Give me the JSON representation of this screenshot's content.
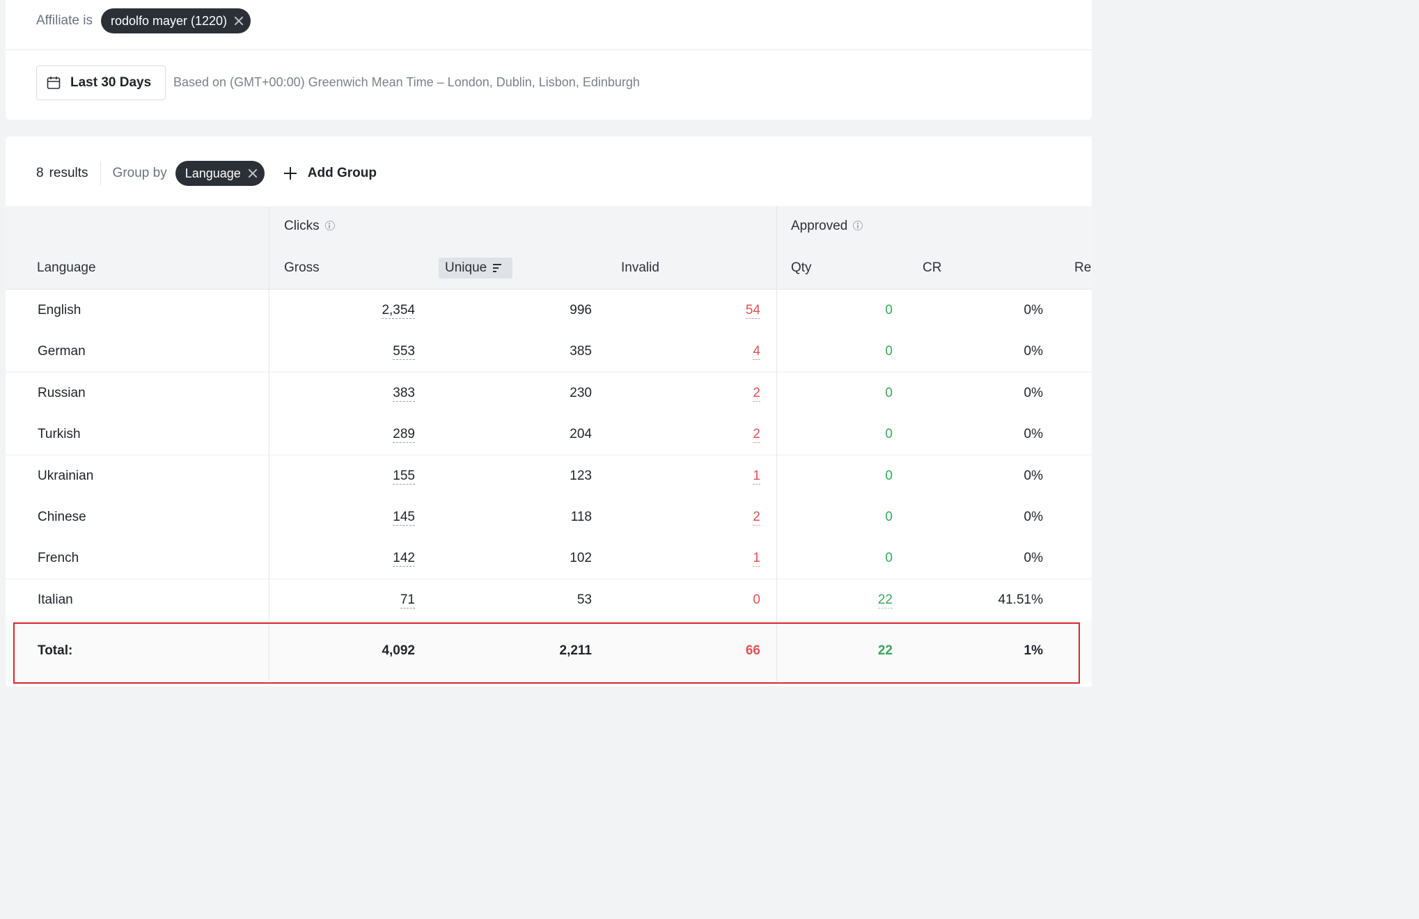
{
  "filter": {
    "label": "Affiliate is",
    "chip": "rodolfo mayer (1220)"
  },
  "date_range": {
    "label": "Last 30 Days",
    "timezone_note": "Based on (GMT+00:00) Greenwich Mean Time – London, Dublin, Lisbon, Edinburgh"
  },
  "toolbar": {
    "results_count": "8",
    "results_label": "results",
    "group_by_label": "Group by",
    "group_chip": "Language",
    "add_group": "Add Group"
  },
  "table": {
    "group_headers": {
      "clicks": "Clicks",
      "approved": "Approved"
    },
    "columns": {
      "language": "Language",
      "gross": "Gross",
      "unique": "Unique",
      "invalid": "Invalid",
      "qty": "Qty",
      "cr": "CR",
      "rev": "Re"
    },
    "rows": [
      {
        "language": "English",
        "gross": "2,354",
        "unique": "996",
        "invalid": "54",
        "qty": "0",
        "cr": "0%"
      },
      {
        "language": "German",
        "gross": "553",
        "unique": "385",
        "invalid": "4",
        "qty": "0",
        "cr": "0%"
      },
      {
        "language": "Russian",
        "gross": "383",
        "unique": "230",
        "invalid": "2",
        "qty": "0",
        "cr": "0%"
      },
      {
        "language": "Turkish",
        "gross": "289",
        "unique": "204",
        "invalid": "2",
        "qty": "0",
        "cr": "0%"
      },
      {
        "language": "Ukrainian",
        "gross": "155",
        "unique": "123",
        "invalid": "1",
        "qty": "0",
        "cr": "0%"
      },
      {
        "language": "Chinese",
        "gross": "145",
        "unique": "118",
        "invalid": "2",
        "qty": "0",
        "cr": "0%"
      },
      {
        "language": "French",
        "gross": "142",
        "unique": "102",
        "invalid": "1",
        "qty": "0",
        "cr": "0%"
      },
      {
        "language": "Italian",
        "gross": "71",
        "unique": "53",
        "invalid": "0",
        "qty": "22",
        "cr": "41.51%"
      }
    ],
    "total": {
      "label": "Total:",
      "gross": "4,092",
      "unique": "2,211",
      "invalid": "66",
      "qty": "22",
      "cr": "1%"
    }
  },
  "colors": {
    "negative": "#e05252",
    "positive": "#3aa757",
    "chip_bg": "#2b2f36",
    "highlight": "#d9262c"
  }
}
